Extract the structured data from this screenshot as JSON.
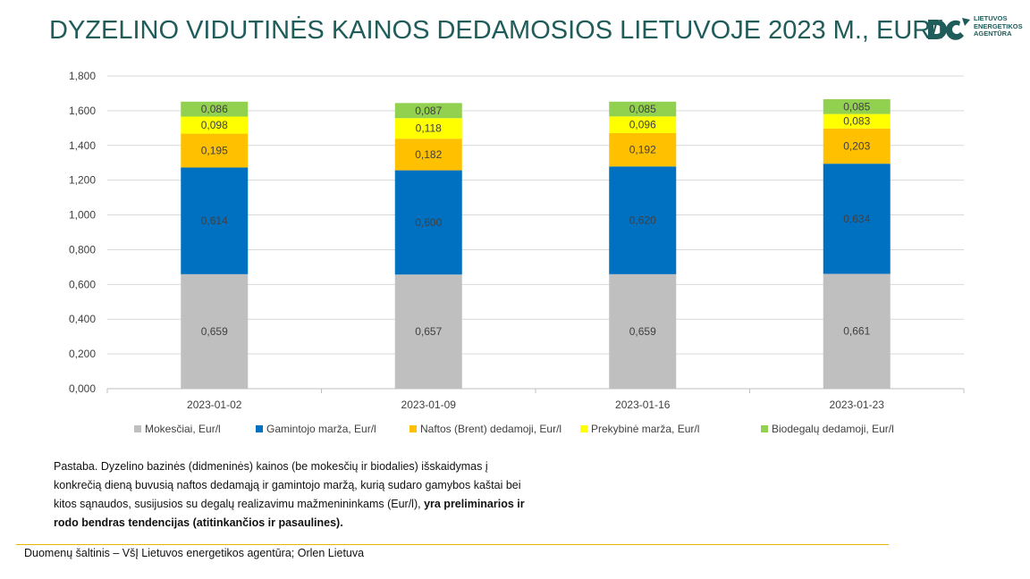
{
  "title": "DYZELINO VIDUTINĖS KAINOS DEDAMOSIOS LIETUVOJE 2023 M., EUR/l",
  "logo": {
    "lines": [
      "LIETUVOS",
      "ENERGETIKOS",
      "AGENTŪRA"
    ],
    "icon": "lea-logo-icon"
  },
  "chart_data": {
    "type": "bar",
    "stacked": true,
    "categories": [
      "2023-01-02",
      "2023-01-09",
      "2023-01-16",
      "2023-01-23"
    ],
    "series": [
      {
        "name": "Mokesčiai, Eur/l",
        "color": "#bfbfbf",
        "values": [
          0.659,
          0.657,
          0.659,
          0.661
        ],
        "labels": [
          "0,659",
          "0,657",
          "0,659",
          "0,661"
        ]
      },
      {
        "name": "Gamintojo marža, Eur/l",
        "color": "#0070c0",
        "values": [
          0.614,
          0.6,
          0.62,
          0.634
        ],
        "labels": [
          "0,614",
          "0,600",
          "0,620",
          "0,634"
        ]
      },
      {
        "name": "Naftos (Brent) dedamoji, Eur/l",
        "color": "#ffc000",
        "values": [
          0.195,
          0.182,
          0.192,
          0.203
        ],
        "labels": [
          "0,195",
          "0,182",
          "0,192",
          "0,203"
        ]
      },
      {
        "name": "Prekybinė marža, Eur/l",
        "color": "#ffff00",
        "values": [
          0.098,
          0.118,
          0.096,
          0.083
        ],
        "labels": [
          "0,098",
          "0,118",
          "0,096",
          "0,083"
        ]
      },
      {
        "name": "Biodegalų dedamoji, Eur/l",
        "color": "#92d050",
        "values": [
          0.086,
          0.087,
          0.085,
          0.085
        ],
        "labels": [
          "0,086",
          "0,087",
          "0,085",
          "0,085"
        ]
      }
    ],
    "ylim": [
      0,
      1.8
    ],
    "yticks": [
      "0,000",
      "0,200",
      "0,400",
      "0,600",
      "0,800",
      "1,000",
      "1,200",
      "1,400",
      "1,600",
      "1,800"
    ],
    "grid": true,
    "legend_position": "bottom"
  },
  "note": {
    "text": "Pastaba. Dyzelino bazinės (didmeninės) kainos (be mokesčių ir biodalies) išskaidymas į konkrečią dieną buvusią naftos dedamąją ir gamintojo maržą, kurią sudaro gamybos kaštai bei kitos sąnaudos, susijusios su degalų realizavimu mažmenininkams (Eur/l), ",
    "bold": "yra preliminarios ir rodo bendras tendencijas (atitinkančios ir pasaulines)."
  },
  "source": "Duomenų šaltinis – VšĮ Lietuvos energetikos agentūra; Orlen Lietuva"
}
